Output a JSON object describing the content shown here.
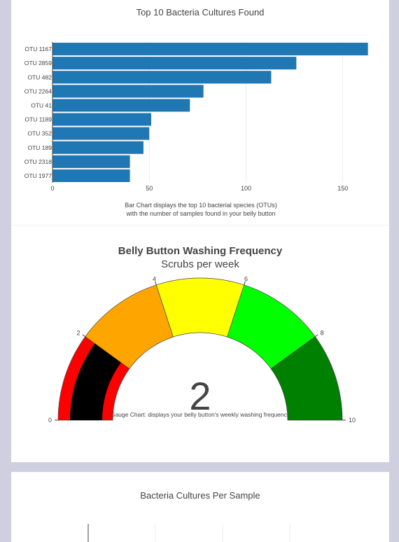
{
  "bar_chart": {
    "caption_line1": "Bar Chart displays the top 10 bacterial species (OTUs)",
    "caption_line2": "with the number of samples found in your belly button"
  },
  "gauge_chart": {
    "caption": "Gauge Chart: displays your belly button's weekly washing frequency"
  },
  "bubble_chart": {
    "title": "Bacteria Cultures Per Sample"
  },
  "chart_data": [
    {
      "type": "bar",
      "orientation": "horizontal",
      "title": "Top 10 Bacteria Cultures Found",
      "categories": [
        "OTU 1167",
        "OTU 2859",
        "OTU 482",
        "OTU 2264",
        "OTU 41",
        "OTU 1189",
        "OTU 352",
        "OTU 189",
        "OTU 2318",
        "OTU 1977"
      ],
      "values": [
        163,
        126,
        113,
        78,
        71,
        51,
        50,
        47,
        40,
        40
      ],
      "xlim": [
        0,
        170
      ],
      "xticks": [
        0,
        50,
        100,
        150
      ],
      "grid": true,
      "color": "#1f77b4"
    },
    {
      "type": "gauge",
      "title": "Belly Button Washing Frequency",
      "subtitle": "Scrubs per week",
      "value": 2,
      "range": [
        0,
        10
      ],
      "ticks": [
        0,
        2,
        4,
        6,
        8,
        10
      ],
      "bands": [
        {
          "from": 0,
          "to": 2,
          "color": "#ff0000"
        },
        {
          "from": 2,
          "to": 4,
          "color": "#ffa500"
        },
        {
          "from": 4,
          "to": 6,
          "color": "#ffff00"
        },
        {
          "from": 6,
          "to": 8,
          "color": "#00ff00"
        },
        {
          "from": 8,
          "to": 10,
          "color": "#008000"
        }
      ],
      "bar_color": "#000000"
    }
  ]
}
